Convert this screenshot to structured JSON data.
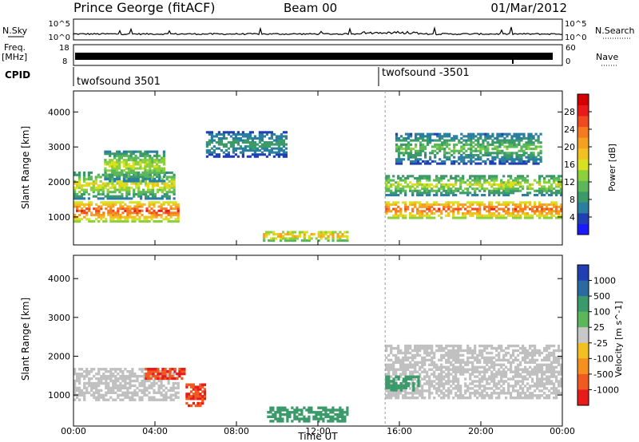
{
  "header": {
    "station": "Prince George (fitACF)",
    "beam": "Beam 00",
    "date": "01/Mar/2012"
  },
  "top_panels": {
    "nsky_label": "N.Sky",
    "nsky_ticks": [
      "10^5",
      "10^0"
    ],
    "nsearch_label": "N.Search",
    "nsearch_ticks": [
      "10^5",
      "10^0"
    ],
    "freq_label_1": "Freq.",
    "freq_label_2": "[MHz]",
    "freq_ticks": [
      "18",
      "8"
    ],
    "nave_label": "Nave",
    "nave_ticks": [
      "60",
      "0"
    ],
    "cpid_label": "CPID",
    "cpid_entries": [
      {
        "text": "twofsound 3501",
        "start_hour": 0
      },
      {
        "text": "twofsound -3501",
        "start_hour": 15.3
      }
    ]
  },
  "chart_data": [
    {
      "type": "heatmap",
      "quantity": "Power",
      "ylabel": "Slant Range [km]",
      "y_ticks": [
        "1000",
        "2000",
        "3000",
        "4000"
      ],
      "ylim": [
        200,
        4600
      ],
      "xlim": [
        0,
        24
      ],
      "colorbar_label": "Power [dB]",
      "colorbar_ticks": [
        "4",
        "8",
        "12",
        "16",
        "20",
        "24",
        "28"
      ],
      "colorbar_range": [
        0,
        32
      ],
      "colorscale": [
        "#1a1aff",
        "#1f3fb3",
        "#2a7fa0",
        "#3a9a6a",
        "#5ab85a",
        "#8cd03c",
        "#d8e020",
        "#f2c020",
        "#f5a020",
        "#f57a20",
        "#f04a20",
        "#e81a1a",
        "#d40000"
      ],
      "regions": [
        {
          "name": "nightside scatter band",
          "x": [
            0,
            5.2
          ],
          "y": [
            850,
            1450
          ],
          "level_high": 29,
          "level_low": 14
        },
        {
          "name": "nightside upper band",
          "x": [
            0,
            5.0
          ],
          "y": [
            1500,
            2300
          ],
          "level_high": 20,
          "level_low": 6
        },
        {
          "name": "rising streak",
          "x": [
            1.5,
            4.5
          ],
          "y": [
            2000,
            2900
          ],
          "level_high": 18,
          "level_low": 6
        },
        {
          "name": "pre-noon far range",
          "x": [
            6.5,
            10.5
          ],
          "y": [
            2700,
            3450
          ],
          "level_high": 10,
          "level_low": 4
        },
        {
          "name": "midday near range",
          "x": [
            9.3,
            13.5
          ],
          "y": [
            300,
            600
          ],
          "level_high": 24,
          "level_low": 10
        },
        {
          "name": "evening main band",
          "x": [
            15.3,
            24
          ],
          "y": [
            950,
            1450
          ],
          "level_high": 28,
          "level_low": 14
        },
        {
          "name": "evening upper band",
          "x": [
            15.3,
            24
          ],
          "y": [
            1600,
            2200
          ],
          "level_high": 18,
          "level_low": 6
        },
        {
          "name": "evening far range",
          "x": [
            15.8,
            23
          ],
          "y": [
            2500,
            3400
          ],
          "level_high": 14,
          "level_low": 4
        }
      ]
    },
    {
      "type": "heatmap",
      "quantity": "Velocity",
      "ylabel": "Slant Range [km]",
      "y_ticks": [
        "1000",
        "2000",
        "3000",
        "4000"
      ],
      "ylim": [
        200,
        4600
      ],
      "xlim": [
        0,
        24
      ],
      "xlabel": "Time UT",
      "x_ticks": [
        "00:00",
        "04:00",
        "08:00",
        "12:00",
        "16:00",
        "20:00",
        "00:00"
      ],
      "colorbar_label": "Velocity [m s^-1]",
      "colorbar_ticks": [
        "1000",
        "500",
        "100",
        "25",
        "-25",
        "-100",
        "-500",
        "-1000"
      ],
      "colorscale": [
        "#1f3fb3",
        "#2a6aa0",
        "#3a9a6a",
        "#5ab85a",
        "#c8c8c8",
        "#f2c020",
        "#f59020",
        "#f05a20",
        "#e81a1a"
      ],
      "ground_scatter_color": "#c0c0c0",
      "regions": [
        {
          "name": "nightside ground scatter",
          "x": [
            0,
            5.2
          ],
          "y": [
            850,
            1700
          ],
          "velocity": 0
        },
        {
          "name": "nightside negative flow",
          "x": [
            3.5,
            5.5
          ],
          "y": [
            1400,
            1700
          ],
          "velocity": -900
        },
        {
          "name": "pre-noon negative flow",
          "x": [
            5.5,
            6.5
          ],
          "y": [
            700,
            1300
          ],
          "velocity": -800
        },
        {
          "name": "midday positive flow",
          "x": [
            9.5,
            13.5
          ],
          "y": [
            300,
            700
          ],
          "velocity": 120
        },
        {
          "name": "evening ground scatter",
          "x": [
            15.3,
            24
          ],
          "y": [
            900,
            2300
          ],
          "velocity": 0
        },
        {
          "name": "evening positive flow",
          "x": [
            15.3,
            17
          ],
          "y": [
            1100,
            1500
          ],
          "velocity": 200
        }
      ]
    }
  ]
}
